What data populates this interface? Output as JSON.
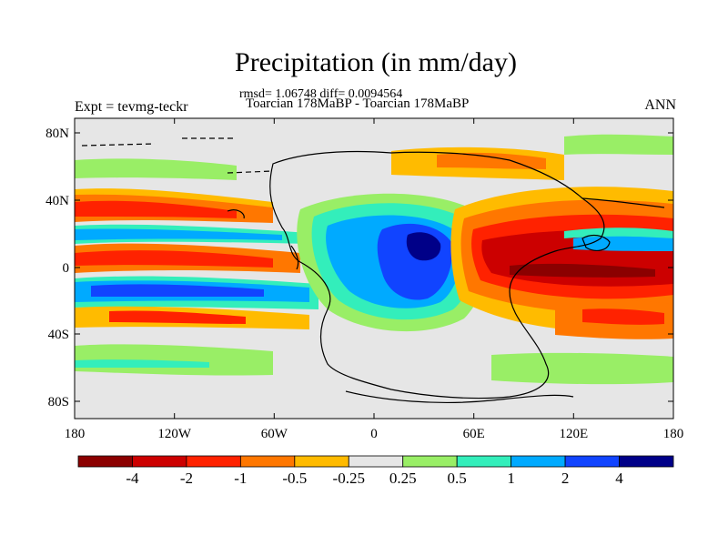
{
  "title": "Precipitation (in mm/day)",
  "stats_line": "rmsd= 1.06748 diff= 0.0094564",
  "comparison": "Toarcian 178MaBP - Toarcian 178MaBP",
  "experiment": "Expt = tevmg-teckr",
  "season": "ANN",
  "axes": {
    "y_ticks": [
      "80N",
      "40N",
      "0",
      "40S",
      "80S"
    ],
    "x_ticks": [
      "180",
      "120W",
      "60W",
      "0",
      "60E",
      "120E",
      "180"
    ]
  },
  "colorbar": {
    "colors": [
      "#8b0000",
      "#cc0000",
      "#ff2200",
      "#ff7700",
      "#ffbb00",
      "#e6e6e6",
      "#99ee66",
      "#33eebb",
      "#00aaff",
      "#1144ff",
      "#000088"
    ],
    "labels": [
      "-4",
      "-2",
      "-1",
      "-0.5",
      "-0.25",
      "0.25",
      "0.5",
      "1",
      "2",
      "4"
    ]
  },
  "colors": {
    "background": "#e6e6e6",
    "coast": "#000000"
  }
}
